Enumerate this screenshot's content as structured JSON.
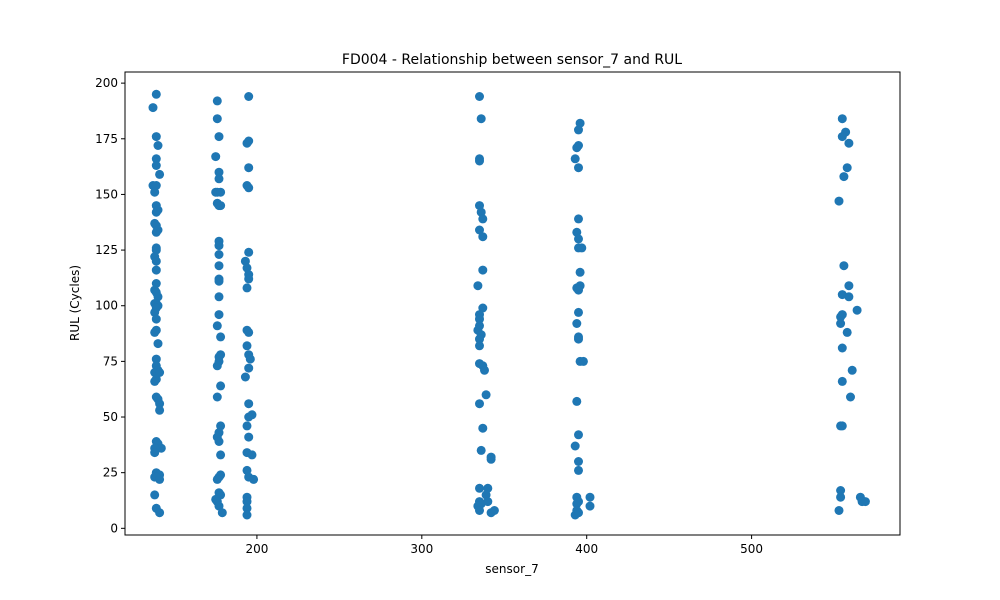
{
  "chart_data": {
    "type": "scatter",
    "title": "FD004 - Relationship between sensor_7 and RUL",
    "xlabel": "sensor_7",
    "ylabel": "RUL (Cycles)",
    "xlim": [
      120,
      590
    ],
    "ylim": [
      -3,
      205
    ],
    "xticks": [
      200,
      300,
      400,
      500
    ],
    "yticks": [
      0,
      25,
      50,
      75,
      100,
      125,
      150,
      175,
      200
    ],
    "grid": false,
    "legend": "none",
    "color": "#1f77b4",
    "points": [
      [
        139,
        195
      ],
      [
        137,
        189
      ],
      [
        139,
        176
      ],
      [
        140,
        172
      ],
      [
        139,
        166
      ],
      [
        139,
        163
      ],
      [
        141,
        159
      ],
      [
        137,
        154
      ],
      [
        139,
        154
      ],
      [
        138,
        151
      ],
      [
        139,
        145
      ],
      [
        139,
        142
      ],
      [
        140,
        143
      ],
      [
        138,
        137
      ],
      [
        139,
        136
      ],
      [
        140,
        134
      ],
      [
        139,
        133
      ],
      [
        139,
        126
      ],
      [
        139,
        125
      ],
      [
        138,
        122
      ],
      [
        139,
        120
      ],
      [
        139,
        116
      ],
      [
        139,
        110
      ],
      [
        138,
        107
      ],
      [
        139,
        106
      ],
      [
        140,
        104
      ],
      [
        138,
        101
      ],
      [
        139,
        101
      ],
      [
        140,
        100
      ],
      [
        139,
        99
      ],
      [
        138,
        97
      ],
      [
        139,
        94
      ],
      [
        139,
        89
      ],
      [
        138,
        88
      ],
      [
        140,
        83
      ],
      [
        139,
        76
      ],
      [
        139,
        73
      ],
      [
        140,
        71
      ],
      [
        138,
        70
      ],
      [
        141,
        70
      ],
      [
        139,
        67
      ],
      [
        138,
        66
      ],
      [
        139,
        59
      ],
      [
        140,
        58
      ],
      [
        141,
        56
      ],
      [
        141,
        53
      ],
      [
        139,
        39
      ],
      [
        140,
        38
      ],
      [
        142,
        36
      ],
      [
        138,
        36
      ],
      [
        138,
        34
      ],
      [
        139,
        25
      ],
      [
        140,
        24
      ],
      [
        141,
        24
      ],
      [
        138,
        23
      ],
      [
        139,
        23
      ],
      [
        141,
        22
      ],
      [
        138,
        15
      ],
      [
        139,
        9
      ],
      [
        141,
        7
      ],
      [
        176,
        192
      ],
      [
        176,
        184
      ],
      [
        177,
        176
      ],
      [
        175,
        167
      ],
      [
        177,
        160
      ],
      [
        177,
        157
      ],
      [
        175,
        151
      ],
      [
        176,
        151
      ],
      [
        178,
        151
      ],
      [
        176,
        146
      ],
      [
        177,
        145
      ],
      [
        178,
        145
      ],
      [
        177,
        129
      ],
      [
        177,
        127
      ],
      [
        177,
        123
      ],
      [
        177,
        118
      ],
      [
        177,
        112
      ],
      [
        177,
        111
      ],
      [
        177,
        104
      ],
      [
        177,
        96
      ],
      [
        176,
        91
      ],
      [
        178,
        86
      ],
      [
        178,
        78
      ],
      [
        177,
        77
      ],
      [
        177,
        75
      ],
      [
        176,
        73
      ],
      [
        178,
        64
      ],
      [
        176,
        59
      ],
      [
        178,
        46
      ],
      [
        177,
        43
      ],
      [
        176,
        41
      ],
      [
        177,
        39
      ],
      [
        178,
        33
      ],
      [
        178,
        24
      ],
      [
        177,
        23
      ],
      [
        176,
        22
      ],
      [
        177,
        16
      ],
      [
        178,
        15
      ],
      [
        175,
        13
      ],
      [
        176,
        12
      ],
      [
        177,
        10
      ],
      [
        179,
        7
      ],
      [
        195,
        194
      ],
      [
        195,
        174
      ],
      [
        194,
        173
      ],
      [
        195,
        162
      ],
      [
        194,
        154
      ],
      [
        195,
        153
      ],
      [
        193,
        120
      ],
      [
        195,
        124
      ],
      [
        194,
        117
      ],
      [
        195,
        114
      ],
      [
        195,
        112
      ],
      [
        194,
        108
      ],
      [
        194,
        89
      ],
      [
        195,
        88
      ],
      [
        194,
        82
      ],
      [
        195,
        78
      ],
      [
        196,
        76
      ],
      [
        195,
        72
      ],
      [
        193,
        68
      ],
      [
        195,
        56
      ],
      [
        197,
        51
      ],
      [
        195,
        50
      ],
      [
        194,
        46
      ],
      [
        195,
        41
      ],
      [
        194,
        34
      ],
      [
        197,
        33
      ],
      [
        194,
        26
      ],
      [
        195,
        23
      ],
      [
        198,
        22
      ],
      [
        194,
        14
      ],
      [
        194,
        12
      ],
      [
        194,
        9
      ],
      [
        194,
        6
      ],
      [
        335,
        194
      ],
      [
        336,
        184
      ],
      [
        335,
        166
      ],
      [
        335,
        165
      ],
      [
        335,
        145
      ],
      [
        336,
        142
      ],
      [
        337,
        139
      ],
      [
        335,
        134
      ],
      [
        337,
        131
      ],
      [
        337,
        116
      ],
      [
        334,
        109
      ],
      [
        337,
        99
      ],
      [
        335,
        96
      ],
      [
        335,
        94
      ],
      [
        335,
        91
      ],
      [
        334,
        89
      ],
      [
        336,
        87
      ],
      [
        335,
        85
      ],
      [
        335,
        82
      ],
      [
        335,
        74
      ],
      [
        337,
        73
      ],
      [
        338,
        71
      ],
      [
        335,
        56
      ],
      [
        339,
        60
      ],
      [
        337,
        45
      ],
      [
        336,
        35
      ],
      [
        342,
        32
      ],
      [
        342,
        31
      ],
      [
        335,
        18
      ],
      [
        340,
        18
      ],
      [
        339,
        15
      ],
      [
        335,
        12
      ],
      [
        336,
        11
      ],
      [
        334,
        10
      ],
      [
        340,
        12
      ],
      [
        335,
        8
      ],
      [
        342,
        7
      ],
      [
        344,
        8
      ],
      [
        396,
        182
      ],
      [
        395,
        179
      ],
      [
        395,
        172
      ],
      [
        394,
        171
      ],
      [
        393,
        166
      ],
      [
        395,
        162
      ],
      [
        395,
        139
      ],
      [
        394,
        133
      ],
      [
        395,
        130
      ],
      [
        395,
        126
      ],
      [
        397,
        126
      ],
      [
        396,
        115
      ],
      [
        396,
        109
      ],
      [
        394,
        108
      ],
      [
        395,
        107
      ],
      [
        395,
        97
      ],
      [
        394,
        92
      ],
      [
        395,
        86
      ],
      [
        395,
        85
      ],
      [
        396,
        75
      ],
      [
        398,
        75
      ],
      [
        394,
        57
      ],
      [
        395,
        42
      ],
      [
        393,
        37
      ],
      [
        395,
        30
      ],
      [
        395,
        26
      ],
      [
        394,
        14
      ],
      [
        402,
        14
      ],
      [
        395,
        12
      ],
      [
        394,
        11
      ],
      [
        402,
        10
      ],
      [
        394,
        8
      ],
      [
        393,
        6
      ],
      [
        395,
        7
      ],
      [
        555,
        184
      ],
      [
        557,
        178
      ],
      [
        555,
        176
      ],
      [
        559,
        173
      ],
      [
        558,
        162
      ],
      [
        556,
        158
      ],
      [
        553,
        147
      ],
      [
        556,
        118
      ],
      [
        559,
        109
      ],
      [
        555,
        105
      ],
      [
        559,
        104
      ],
      [
        564,
        98
      ],
      [
        555,
        96
      ],
      [
        554,
        95
      ],
      [
        554,
        92
      ],
      [
        558,
        88
      ],
      [
        555,
        81
      ],
      [
        561,
        71
      ],
      [
        555,
        66
      ],
      [
        560,
        59
      ],
      [
        554,
        46
      ],
      [
        555,
        46
      ],
      [
        554,
        17
      ],
      [
        554,
        14
      ],
      [
        566,
        14
      ],
      [
        567,
        12
      ],
      [
        569,
        12
      ],
      [
        553,
        8
      ]
    ]
  }
}
